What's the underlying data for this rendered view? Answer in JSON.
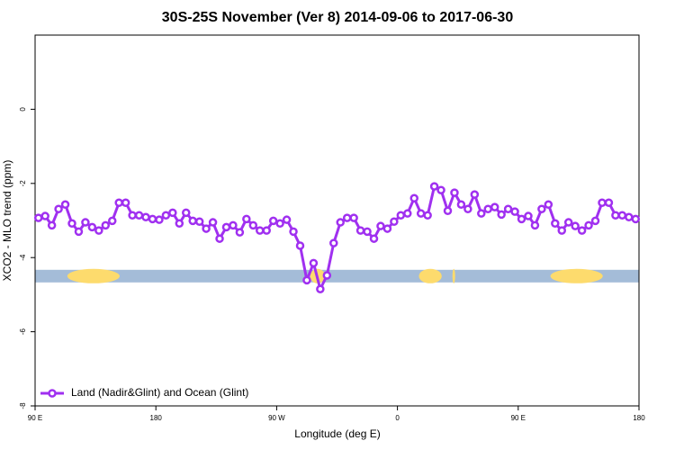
{
  "chart_data": {
    "type": "line",
    "title": "30S-25S November (Ver 8)   2014-09-06 to 2017-06-30",
    "x_label": "Longitude (deg E)",
    "y_label": "XCO2 - MLO trend (ppm)",
    "xlim": [
      90,
      540
    ],
    "ylim": [
      -8,
      2
    ],
    "xticks": [
      {
        "value": 90,
        "label": "90 E"
      },
      {
        "value": 180,
        "label": "180"
      },
      {
        "value": 270,
        "label": "90 W"
      },
      {
        "value": 360,
        "label": "0"
      },
      {
        "value": 450,
        "label": "90 E"
      },
      {
        "value": 540,
        "label": "180"
      }
    ],
    "yticks": [
      0,
      -2,
      -4,
      -6,
      -8
    ],
    "legend": "bottom-left",
    "surface_band": {
      "y": -4.5,
      "ocean_color": "#a4bcd8",
      "land_color": "#fddb6d",
      "land": [
        [
          114,
          153
        ],
        [
          295,
          306
        ],
        [
          376,
          393
        ],
        [
          401,
          403
        ],
        [
          474,
          513
        ]
      ]
    },
    "series": [
      {
        "name": "Land (Nadir&Glint) and Ocean (Glint)",
        "color": "#a030f0",
        "x": [
          92.5,
          97.5,
          102.5,
          107.5,
          112.5,
          117.5,
          122.5,
          127.5,
          132.5,
          137.5,
          142.5,
          147.5,
          152.5,
          157.5,
          162.5,
          167.5,
          172.5,
          177.5,
          182.5,
          187.5,
          192.5,
          197.5,
          202.5,
          207.5,
          212.5,
          217.5,
          222.5,
          227.5,
          232.5,
          237.5,
          242.5,
          247.5,
          252.5,
          257.5,
          262.5,
          267.5,
          272.5,
          277.5,
          282.5,
          287.5,
          292.5,
          297.5,
          302.5,
          307.5,
          312.5,
          317.5,
          322.5,
          327.5,
          332.5,
          337.5,
          342.5,
          347.5,
          352.5,
          357.5,
          362.5,
          367.5,
          372.5,
          377.5,
          382.5,
          387.5,
          392.5,
          397.5,
          402.5,
          407.5,
          412.5,
          417.5,
          422.5,
          427.5,
          432.5,
          437.5,
          442.5,
          447.5,
          452.5,
          457.5,
          462.5,
          467.5,
          472.5,
          477.5,
          482.5,
          487.5,
          492.5,
          497.5,
          502.5,
          507.5,
          512.5,
          517.5,
          522.5,
          527.5,
          532.5,
          537.5
        ],
        "values": [
          -2.93,
          -2.88,
          -3.13,
          -2.69,
          -2.57,
          -3.08,
          -3.3,
          -3.05,
          -3.18,
          -3.27,
          -3.13,
          -3.01,
          -2.52,
          -2.52,
          -2.86,
          -2.86,
          -2.91,
          -2.96,
          -2.98,
          -2.86,
          -2.79,
          -3.08,
          -2.79,
          -3.01,
          -3.03,
          -3.22,
          -3.05,
          -3.49,
          -3.18,
          -3.13,
          -3.32,
          -2.96,
          -3.13,
          -3.27,
          -3.27,
          -3.01,
          -3.08,
          -2.98,
          -3.3,
          -3.68,
          -4.61,
          -4.15,
          -4.85,
          -4.48,
          -3.61,
          -3.05,
          -2.93,
          -2.93,
          -3.27,
          -3.3,
          -3.49,
          -3.15,
          -3.22,
          -3.03,
          -2.86,
          -2.81,
          -2.4,
          -2.81,
          -2.86,
          -2.08,
          -2.18,
          -2.74,
          -2.25,
          -2.57,
          -2.69,
          -2.3,
          -2.81,
          -2.69,
          -2.64,
          -2.84,
          -2.69,
          -2.76,
          -2.96,
          -2.88,
          -3.13,
          -2.69,
          -2.57,
          -3.08,
          -3.27,
          -3.05,
          -3.15,
          -3.27,
          -3.13,
          -3.01,
          -2.52,
          -2.52,
          -2.86,
          -2.86,
          -2.91,
          -2.96
        ]
      }
    ]
  }
}
